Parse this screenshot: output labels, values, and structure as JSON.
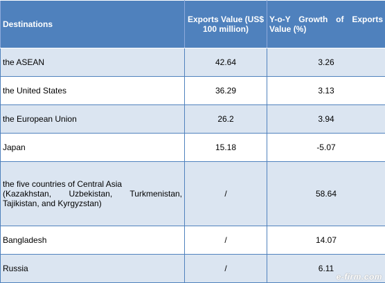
{
  "table": {
    "headers": {
      "destinations": "Destinations",
      "exports_value": "Exports Value (US$ 100 million)",
      "growth": "Y-o-Y Growth of Exports Value (%)"
    },
    "rows": [
      {
        "destination": "the ASEAN",
        "value": "42.64",
        "growth": "3.26"
      },
      {
        "destination": "the United States",
        "value": "36.29",
        "growth": "3.13"
      },
      {
        "destination": "the European Union",
        "value": "26.2",
        "growth": "3.94"
      },
      {
        "destination": "Japan",
        "value": "15.18",
        "growth": "-5.07"
      },
      {
        "destination_line1": "the five countries of Central Asia",
        "destination_line2": "(Kazakhstan, Uzbekistan, Turkmenistan, Tajikistan, and Kyrgyzstan)",
        "value": "/",
        "growth": "58.64"
      },
      {
        "destination": "Bangladesh",
        "value": "/",
        "growth": "14.07"
      },
      {
        "destination": "Russia",
        "value": "/",
        "growth": "6.11"
      }
    ]
  },
  "watermark": "e-firm.com",
  "colors": {
    "header_bg": "#4f81bd",
    "odd_row_bg": "#dbe5f1",
    "even_row_bg": "#ffffff",
    "border": "#4f81bd"
  }
}
